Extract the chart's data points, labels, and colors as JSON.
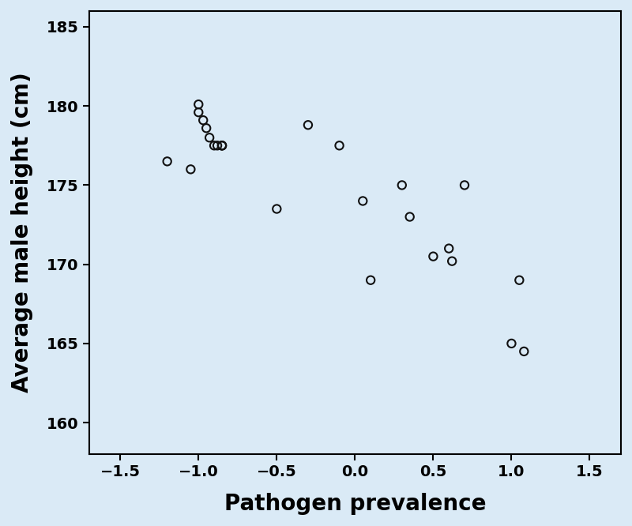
{
  "x": [
    -1.2,
    -1.05,
    -1.0,
    -1.0,
    -0.97,
    -0.95,
    -0.93,
    -0.9,
    -0.88,
    -0.85,
    -0.85,
    -0.85,
    -0.5,
    -0.3,
    -0.1,
    0.05,
    0.1,
    0.3,
    0.35,
    0.5,
    0.6,
    0.62,
    0.7,
    1.0,
    1.05,
    1.08
  ],
  "y": [
    176.5,
    176.0,
    180.1,
    179.6,
    179.1,
    178.6,
    178.0,
    177.5,
    177.5,
    177.5,
    177.5,
    177.5,
    173.5,
    178.8,
    177.5,
    174.0,
    169.0,
    175.0,
    173.0,
    170.5,
    171.0,
    170.2,
    175.0,
    165.0,
    169.0,
    164.5
  ],
  "xlabel": "Pathogen prevalence",
  "ylabel": "Average male height (cm)",
  "xlim": [
    -1.7,
    1.7
  ],
  "ylim": [
    158,
    186
  ],
  "xticks": [
    -1.5,
    -1.0,
    -0.5,
    0.0,
    0.5,
    1.0,
    1.5
  ],
  "yticks": [
    160,
    165,
    170,
    175,
    180,
    185
  ],
  "marker_size": 55,
  "marker_facecolor": "none",
  "marker_edgecolor": "#111111",
  "marker_linewidth": 1.5,
  "plot_bg_color": "#daeaf6",
  "fig_bg_color": "#daeaf6",
  "xlabel_fontsize": 20,
  "ylabel_fontsize": 20,
  "tick_fontsize": 14,
  "xlabel_fontweight": "bold",
  "ylabel_fontweight": "bold",
  "tick_fontweight": "bold",
  "spine_color": "#000000",
  "spine_linewidth": 1.5
}
